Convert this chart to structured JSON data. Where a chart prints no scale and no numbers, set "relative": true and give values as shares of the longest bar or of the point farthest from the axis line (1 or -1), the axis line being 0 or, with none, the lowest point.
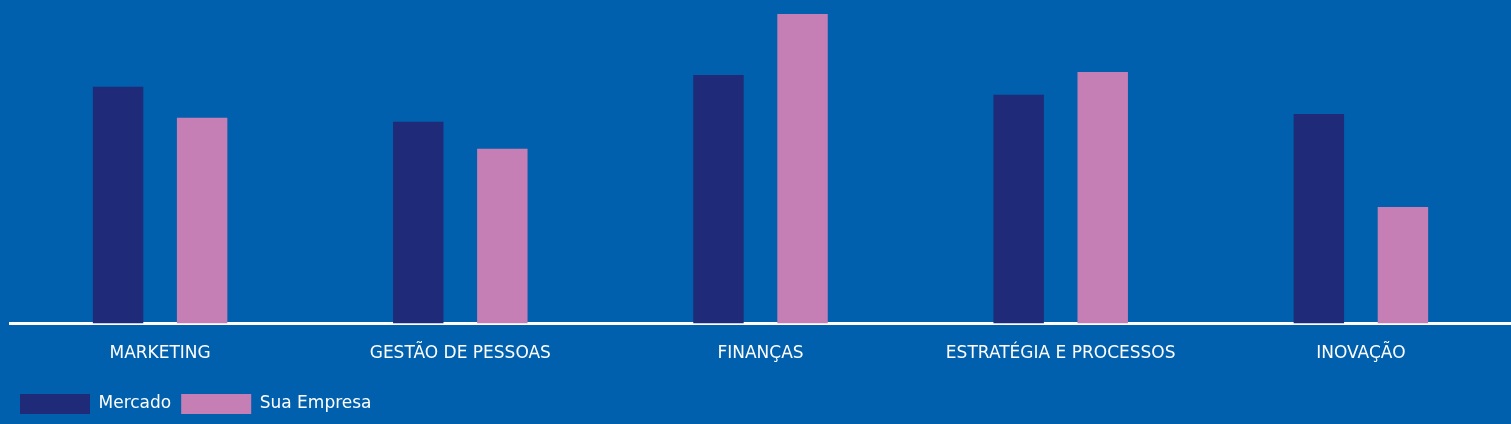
{
  "chart_data": {
    "type": "bar",
    "relative": true,
    "categories": [
      "MARKETING",
      "GESTÃO DE PESSOAS",
      "FINANÇAS",
      "ESTRATÉGIA E PROCESSOS",
      "INOVAÇÃO"
    ],
    "series": [
      {
        "name": "Mercado",
        "color": "#1f2a78",
        "values": [
          0.765,
          0.652,
          0.803,
          0.739,
          0.677
        ]
      },
      {
        "name": "Sua Empresa",
        "color": "#c67fb4",
        "values": [
          0.665,
          0.565,
          1,
          0.813,
          0.377
        ]
      }
    ],
    "legend": "bottom left",
    "grid": false
  }
}
